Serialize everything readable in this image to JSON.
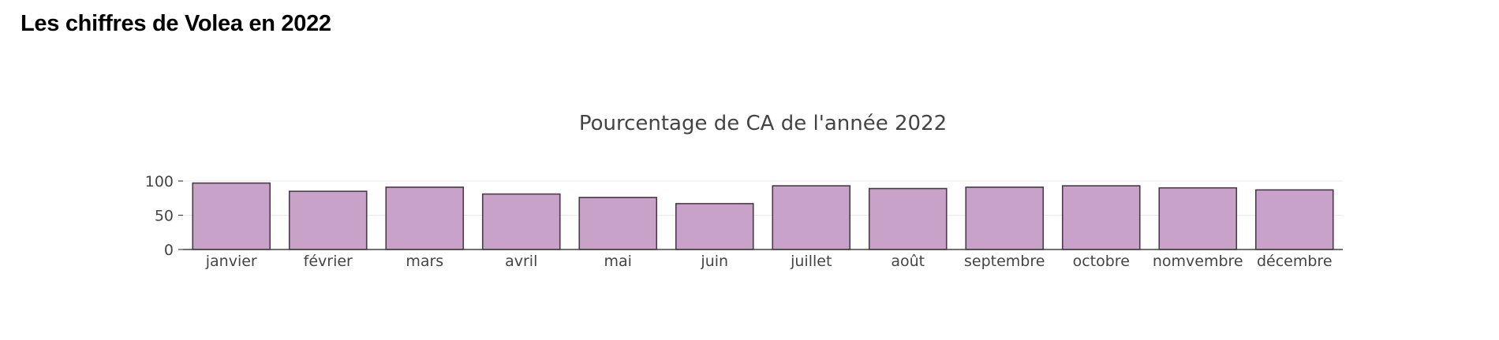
{
  "page": {
    "heading": "Les chiffres de Volea en 2022"
  },
  "chart_data": {
    "type": "bar",
    "title": "Pourcentage de CA de l'année 2022",
    "xlabel": "",
    "ylabel": "",
    "categories": [
      "janvier",
      "février",
      "mars",
      "avril",
      "mai",
      "juin",
      "juillet",
      "août",
      "septembre",
      "octobre",
      "nomvembre",
      "décembre"
    ],
    "values": [
      97,
      85,
      91,
      81,
      76,
      67,
      93,
      89,
      91,
      93,
      90,
      87
    ],
    "ylim": [
      0,
      100
    ],
    "yticks": [
      0,
      50,
      100
    ],
    "grid": "horizontal",
    "legend": "none",
    "colors": {
      "bar_fill": "#c8a2c8",
      "bar_stroke": "#4a3a4a",
      "grid": "#ebebeb",
      "axis": "#444444",
      "text": "#444444"
    }
  }
}
